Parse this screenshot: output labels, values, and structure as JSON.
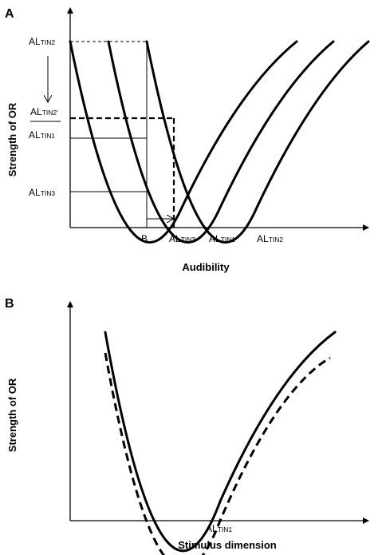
{
  "panel_a": {
    "letter": "A",
    "y_axis_title": "Strength of OR",
    "x_axis_title": "Audibility",
    "y_labels": {
      "tin2": {
        "base": "AL",
        "sub": "TIN2"
      },
      "tin2_prime": {
        "base": "AL",
        "sub": "TIN2'"
      },
      "tin1": {
        "base": "AL",
        "sub": "TIN1"
      },
      "tin3": {
        "base": "AL",
        "sub": "TIN3"
      }
    },
    "x_labels": {
      "b": "B",
      "tin3": {
        "base": "AL",
        "sub": "TIN3"
      },
      "tin1": {
        "base": "AL",
        "sub": "TIN1"
      },
      "tin2": {
        "base": "AL",
        "sub": "TIN2"
      }
    }
  },
  "panel_b": {
    "letter": "B",
    "y_axis_title": "Strength of OR",
    "x_axis_title": "Stimulus dimension",
    "x_label": {
      "base": "AL",
      "sub": "TIN1"
    }
  }
}
